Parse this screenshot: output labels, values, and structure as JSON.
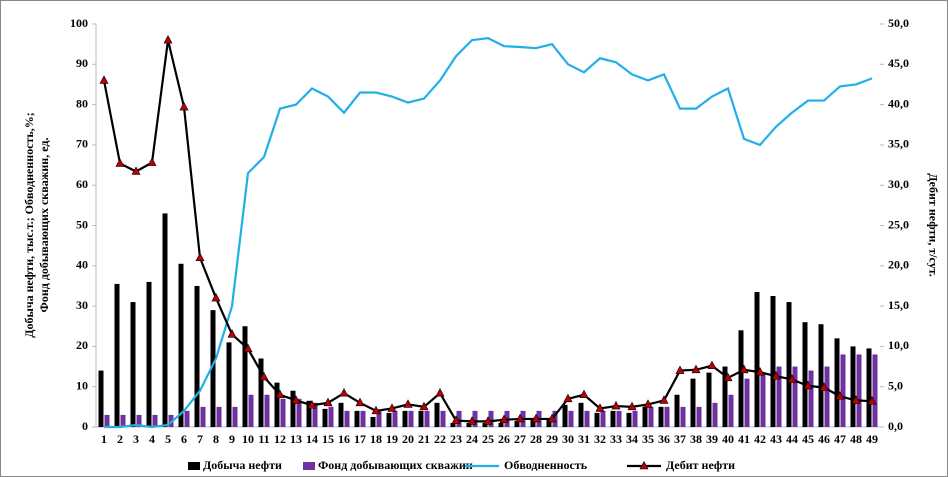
{
  "chart_data": {
    "type": "combo",
    "ylabel": [
      "Добыча нефти, тыс.т.; Обводненность,%;",
      "Фонд добывающих скважин, ед."
    ],
    "y2label": "Дебит нефти, т/сут.",
    "categories": [
      "1",
      "2",
      "3",
      "4",
      "5",
      "6",
      "7",
      "8",
      "9",
      "10",
      "11",
      "12",
      "13",
      "14",
      "15",
      "16",
      "17",
      "18",
      "19",
      "20",
      "21",
      "22",
      "23",
      "24",
      "25",
      "26",
      "27",
      "28",
      "29",
      "30",
      "31",
      "32",
      "33",
      "34",
      "35",
      "36",
      "37",
      "38",
      "39",
      "40",
      "41",
      "42",
      "43",
      "44",
      "45",
      "46",
      "47",
      "48",
      "49"
    ],
    "ylim": [
      0,
      100
    ],
    "yticks": [
      0,
      10,
      20,
      30,
      40,
      50,
      60,
      70,
      80,
      90,
      100
    ],
    "y2lim": [
      0,
      50
    ],
    "y2ticks": [
      {
        "value": 0,
        "label": "0,0"
      },
      {
        "value": 5,
        "label": "5,0"
      },
      {
        "value": 10,
        "label": "10,0"
      },
      {
        "value": 15,
        "label": "15,0"
      },
      {
        "value": 20,
        "label": "20,0"
      },
      {
        "value": 25,
        "label": "25,0"
      },
      {
        "value": 30,
        "label": "30,0"
      },
      {
        "value": 35,
        "label": "35,0"
      },
      {
        "value": 40,
        "label": "40,0"
      },
      {
        "value": 45,
        "label": "45,0"
      },
      {
        "value": 50,
        "label": "50,0"
      }
    ],
    "grid": false,
    "series": [
      {
        "name": "Добыча нефти",
        "type": "bar",
        "color": "#000000",
        "values": [
          14,
          35.5,
          31,
          36,
          53,
          40.5,
          35,
          29,
          21,
          25,
          17,
          11,
          9,
          6.5,
          4.5,
          6,
          4,
          2.5,
          3.5,
          4,
          4,
          6,
          1,
          1,
          1,
          1,
          1.5,
          2,
          2,
          5.5,
          6,
          3.5,
          4,
          3.5,
          5,
          5,
          8,
          12,
          13.5,
          15,
          24,
          33.5,
          32.5,
          31,
          26,
          25.5,
          22,
          20,
          19.5
        ]
      },
      {
        "name": "Фонд добывающих скважин",
        "type": "bar",
        "color": "#7030a0",
        "values": [
          3,
          3,
          3,
          3,
          3,
          4,
          5,
          5,
          5,
          8,
          8,
          7,
          7,
          6,
          5,
          4,
          4,
          4,
          4,
          4,
          4,
          4,
          4,
          4,
          4,
          4,
          4,
          4,
          4,
          4,
          4,
          4,
          4,
          4,
          5,
          5,
          5,
          5,
          6,
          8,
          12,
          13,
          15,
          15,
          14,
          15,
          18,
          18,
          18
        ]
      },
      {
        "name": "Обводненность",
        "type": "line",
        "color": "#1fb0e8",
        "values": [
          0,
          0,
          0.5,
          0,
          0.5,
          4,
          9,
          17,
          30,
          63,
          67,
          79,
          80,
          84,
          82,
          78,
          83,
          83,
          82,
          80.5,
          81.5,
          86,
          92,
          96,
          96.5,
          94.5,
          94.3,
          94,
          95,
          90,
          88,
          91.5,
          90.5,
          87.5,
          86,
          87.5,
          79,
          79,
          82,
          84,
          71.5,
          70,
          74.5,
          78,
          81,
          81,
          84.5,
          85,
          86.5
        ]
      },
      {
        "name": "Дебит нефти",
        "type": "line",
        "axis": "y2",
        "color": "#000000",
        "marker": "triangle",
        "marker_color": "#c00000",
        "values": [
          43,
          32.7,
          31.7,
          32.8,
          48,
          39.7,
          21,
          16,
          11.5,
          9.7,
          6.2,
          4,
          3.3,
          2.7,
          3,
          4.2,
          3,
          2,
          2.3,
          2.8,
          2.5,
          4.2,
          0.8,
          0.7,
          0.7,
          0.9,
          1,
          1,
          1,
          3.5,
          4,
          2.3,
          2.6,
          2.5,
          2.8,
          3.3,
          7,
          7.1,
          7.6,
          6.1,
          7.1,
          6.8,
          6.3,
          5.9,
          5.1,
          4.9,
          3.8,
          3.3,
          3.2
        ]
      }
    ]
  }
}
